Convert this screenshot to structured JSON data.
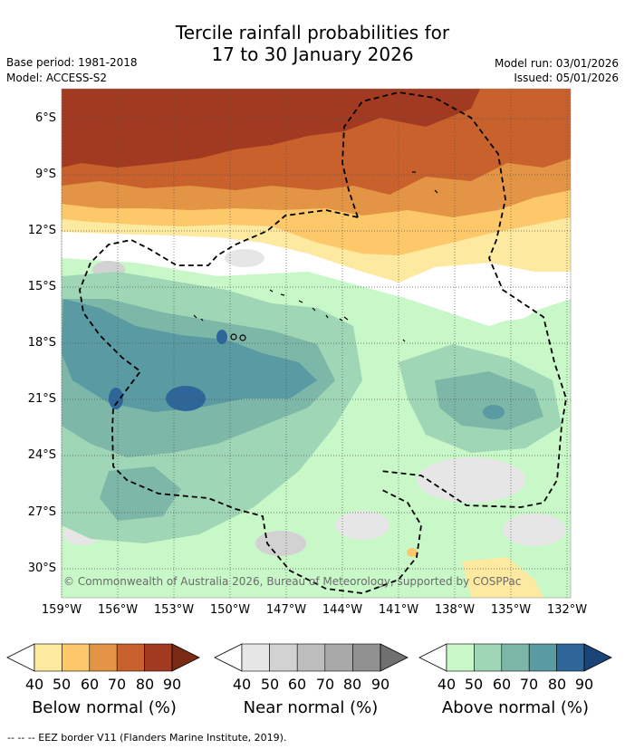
{
  "header": {
    "title_line1": "Tercile rainfall probabilities for",
    "title_line2": "17 to 30 January 2026",
    "base_period": "Base period: 1981-2018",
    "model": "Model: ACCESS-S2",
    "model_run": "Model run: 03/01/2026",
    "issued": "Issued: 05/01/2026"
  },
  "map": {
    "lat_labels": [
      "6°S",
      "9°S",
      "12°S",
      "15°S",
      "18°S",
      "21°S",
      "24°S",
      "27°S",
      "30°S"
    ],
    "lon_labels": [
      "159°W",
      "156°W",
      "153°W",
      "150°W",
      "147°W",
      "144°W",
      "141°W",
      "138°W",
      "135°W",
      "132°W"
    ],
    "copyright": "© Commonwealth of Australia 2026, Bureau of Meteorology, supported by COSPPac"
  },
  "legend": {
    "below": {
      "title": "Below normal (%)",
      "ticks": [
        "40",
        "50",
        "60",
        "70",
        "80",
        "90"
      ],
      "colors": [
        "#ffffff",
        "#fde9a0",
        "#fdc86a",
        "#e39445",
        "#c9612c",
        "#a13a20",
        "#7b2a14"
      ]
    },
    "near": {
      "title": "Near normal (%)",
      "ticks": [
        "40",
        "50",
        "60",
        "70",
        "80",
        "90"
      ],
      "colors": [
        "#ffffff",
        "#e6e6e6",
        "#d2d2d2",
        "#bdbdbd",
        "#a9a9a9",
        "#909090",
        "#707070"
      ]
    },
    "above": {
      "title": "Above normal (%)",
      "ticks": [
        "40",
        "50",
        "60",
        "70",
        "80",
        "90"
      ],
      "colors": [
        "#ffffff",
        "#c8f7c8",
        "#9fd6b5",
        "#7db7a8",
        "#5a9aa2",
        "#2f6699",
        "#1c4577"
      ]
    }
  },
  "footer": "--  --  -- EEZ border V11 (Flanders Marine Institute, 2019)."
}
